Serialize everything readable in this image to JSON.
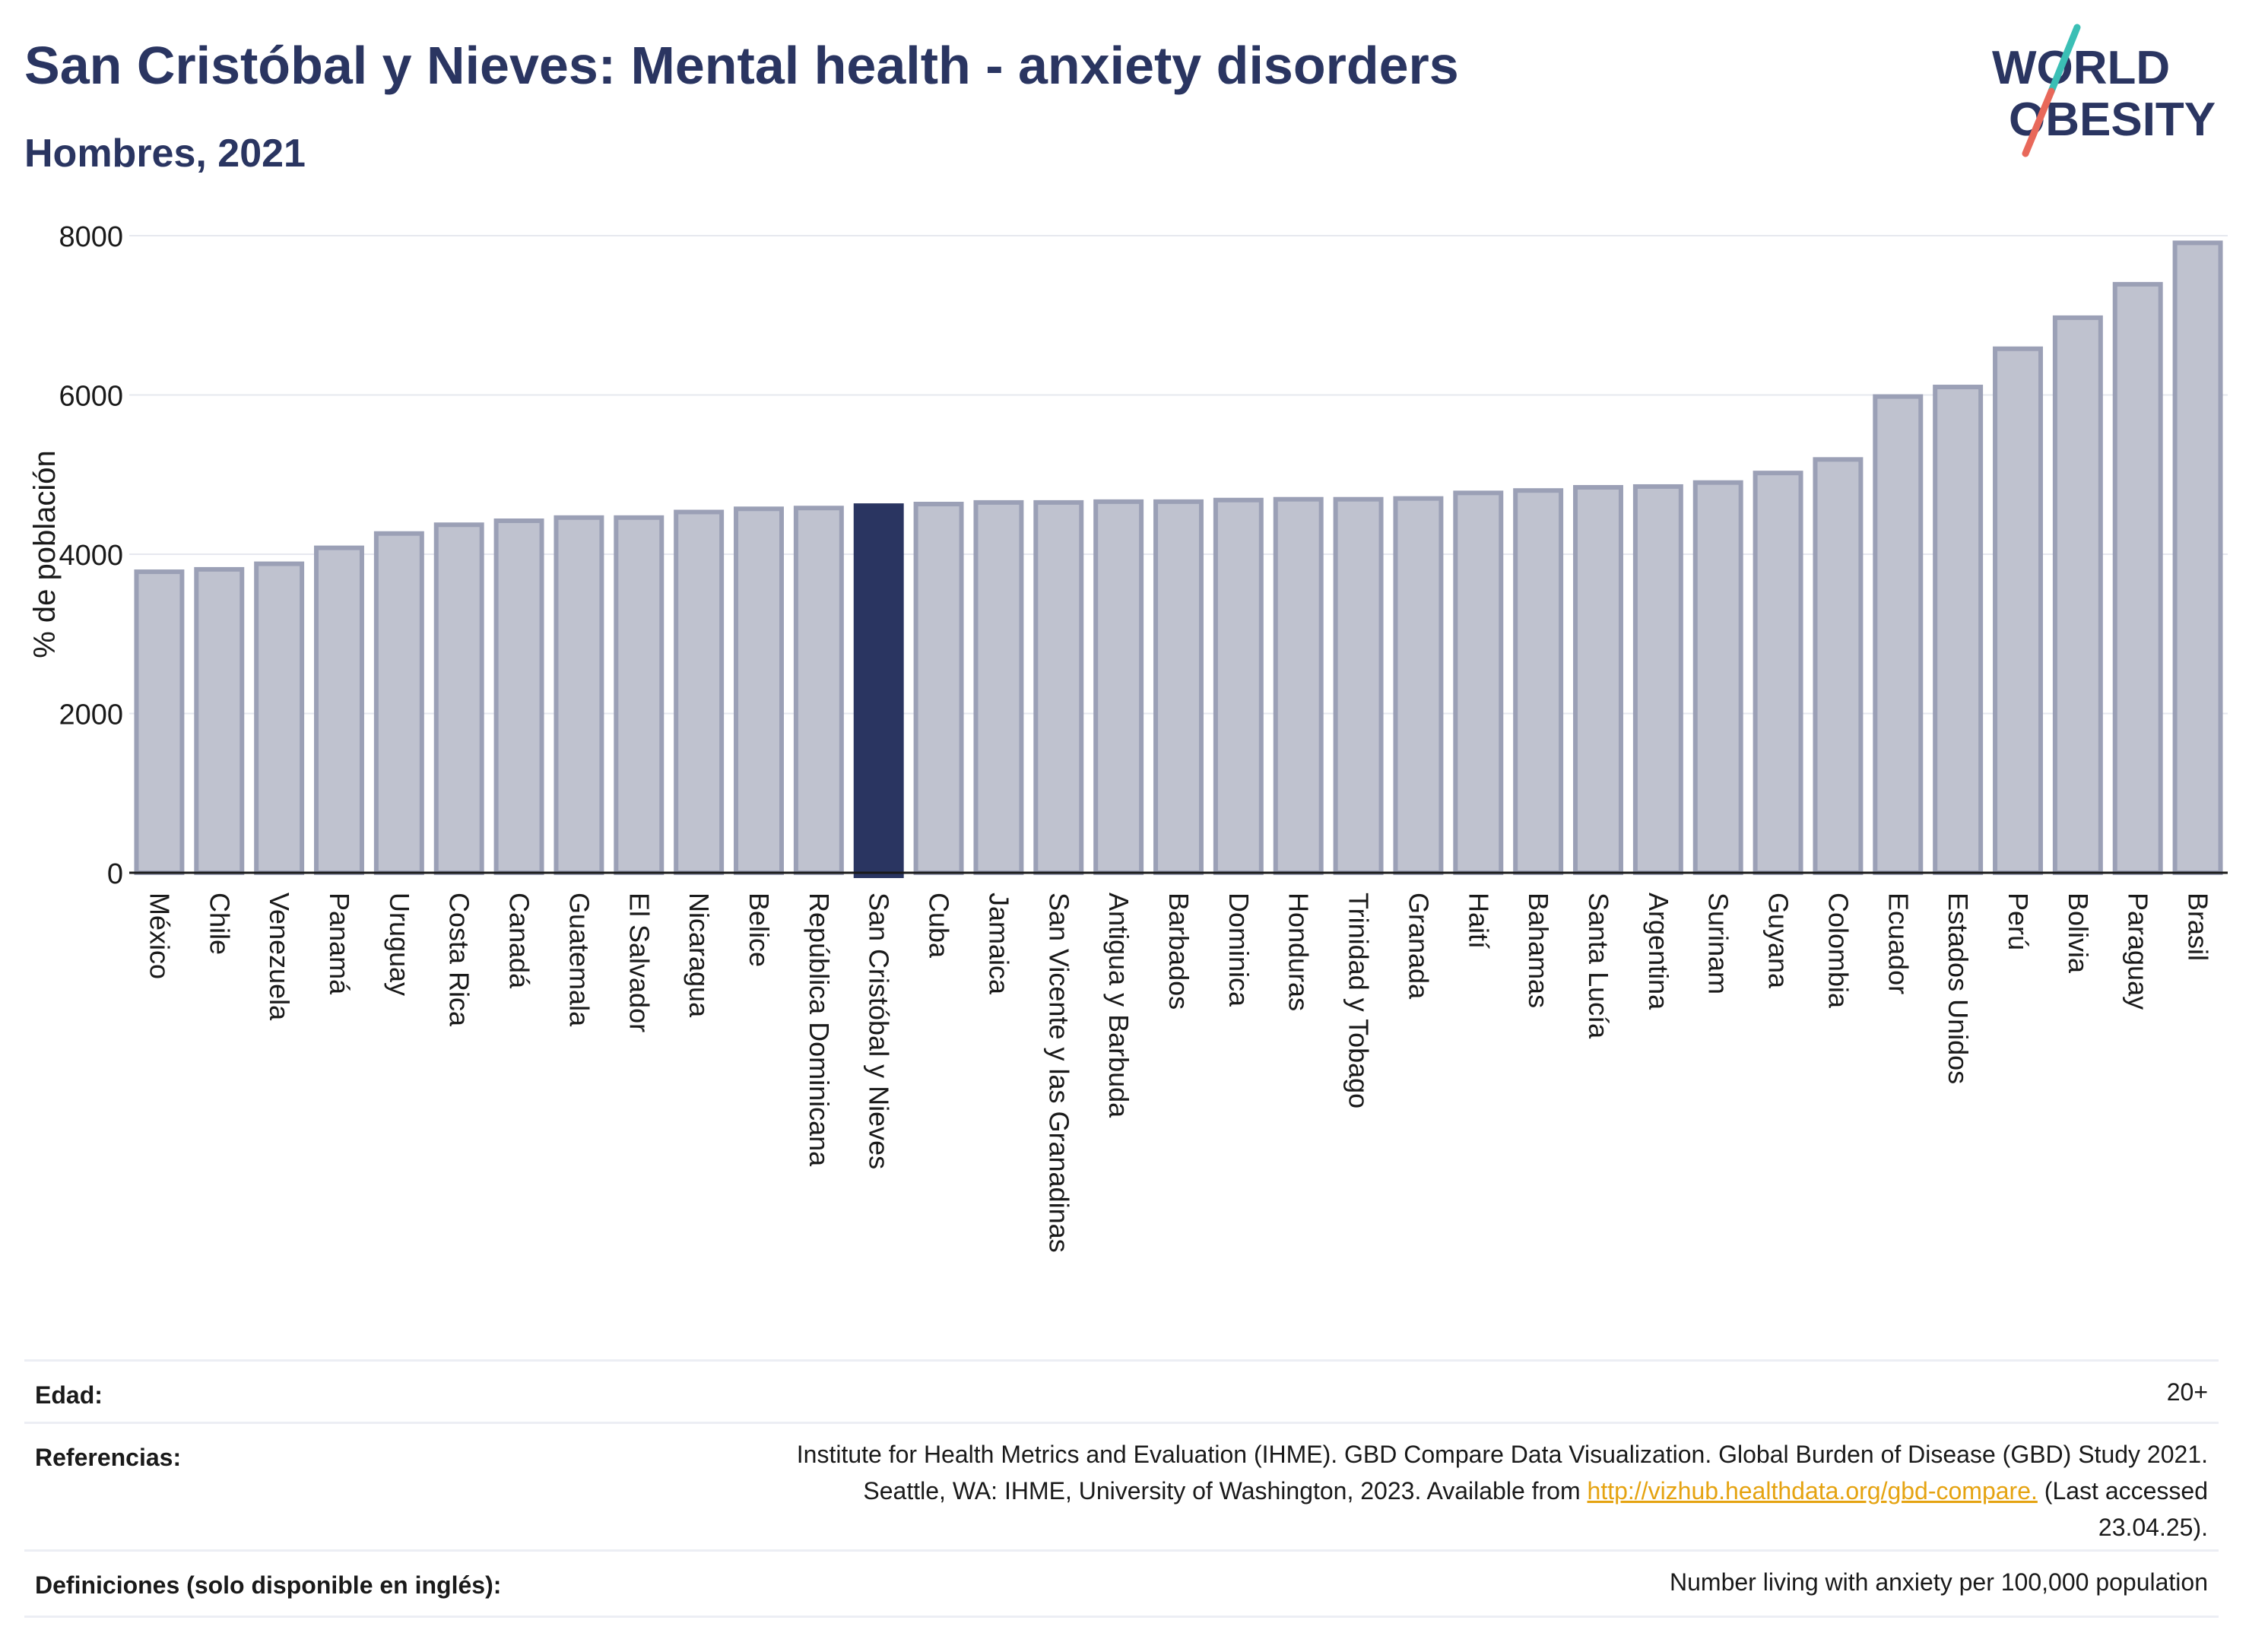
{
  "header": {
    "title": "San Cristóbal y Nieves: Mental health - anxiety disorders",
    "subtitle": "Hombres, 2021"
  },
  "logo": {
    "line1": "WORLD",
    "line2": "OBESITY",
    "accent_teal": "#3bbfb5",
    "accent_red": "#e8685a",
    "text_color": "#2a3561"
  },
  "colors": {
    "bar": "#bfc2cf",
    "bar_stroke": "#9ba0b6",
    "highlight": "#2a3561",
    "grid": "#e6e8ef",
    "axis": "#1a1a1a"
  },
  "chart_data": {
    "type": "bar",
    "ylabel": "% de población",
    "xlabel": "",
    "ylim": [
      0,
      8000
    ],
    "yticks": [
      0,
      2000,
      4000,
      6000,
      8000
    ],
    "grid": true,
    "highlight": "San Cristóbal y Nieves",
    "categories": [
      "México",
      "Chile",
      "Venezuela",
      "Panamá",
      "Uruguay",
      "Costa Rica",
      "Canadá",
      "Guatemala",
      "El Salvador",
      "Nicaragua",
      "Belice",
      "República Dominicana",
      "San Cristóbal y Nieves",
      "Cuba",
      "Jamaica",
      "San Vicente y las Granadinas",
      "Antigua y Barbuda",
      "Barbados",
      "Dominica",
      "Honduras",
      "Trinidad y Tobago",
      "Granada",
      "Haití",
      "Bahamas",
      "Santa Lucía",
      "Argentina",
      "Surinam",
      "Guyana",
      "Colombia",
      "Ecuador",
      "Estados Unidos",
      "Perú",
      "Bolivia",
      "Paraguay",
      "Brasil"
    ],
    "values": [
      3780,
      3810,
      3880,
      4080,
      4260,
      4370,
      4420,
      4460,
      4460,
      4530,
      4570,
      4580,
      4610,
      4630,
      4650,
      4650,
      4660,
      4660,
      4680,
      4690,
      4690,
      4700,
      4770,
      4800,
      4840,
      4850,
      4900,
      5020,
      5190,
      5980,
      6100,
      6580,
      6970,
      7390,
      7910
    ]
  },
  "meta": {
    "age_label": "Edad:",
    "age_value": "20+",
    "references_label": "Referencias:",
    "references_line1": "Institute for Health Metrics and Evaluation (IHME). GBD Compare Data Visualization. Global Burden of Disease (GBD) Study 2021.",
    "references_line2a": "Seattle, WA: IHME, University of Washington, 2023. Available from ",
    "references_link": "http://vizhub.healthdata.org/gbd-compare.",
    "references_line2b": " (Last accessed",
    "references_line3": "23.04.25).",
    "definitions_label": "Definiciones (solo disponible en inglés):",
    "definitions_value": "Number living with anxiety per 100,000 population"
  }
}
